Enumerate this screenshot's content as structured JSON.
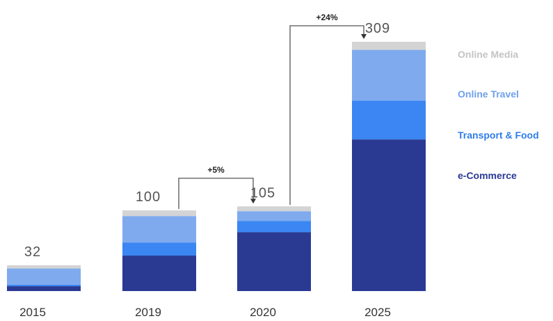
{
  "chart_data": {
    "type": "bar",
    "stacked": true,
    "categories": [
      "2015",
      "2019",
      "2020",
      "2025"
    ],
    "totals": [
      32,
      100,
      105,
      309
    ],
    "series": [
      {
        "name": "e-Commerce",
        "color": "#2a3a93",
        "values": [
          6,
          44,
          73,
          188
        ]
      },
      {
        "name": "Transport & Food",
        "color": "#3b86f2",
        "values": [
          2,
          16,
          14,
          48
        ]
      },
      {
        "name": "Online Travel",
        "color": "#7faaee",
        "values": [
          20,
          33,
          12,
          63
        ]
      },
      {
        "name": "Online Media",
        "color": "#d4d4d4",
        "values": [
          4,
          7,
          6,
          10
        ]
      }
    ],
    "legend_position": "right",
    "annotations": [
      {
        "label": "+5%",
        "from": "2019",
        "to": "2020"
      },
      {
        "label": "+24%",
        "from": "2020",
        "to": "2025"
      }
    ],
    "grid": false
  }
}
